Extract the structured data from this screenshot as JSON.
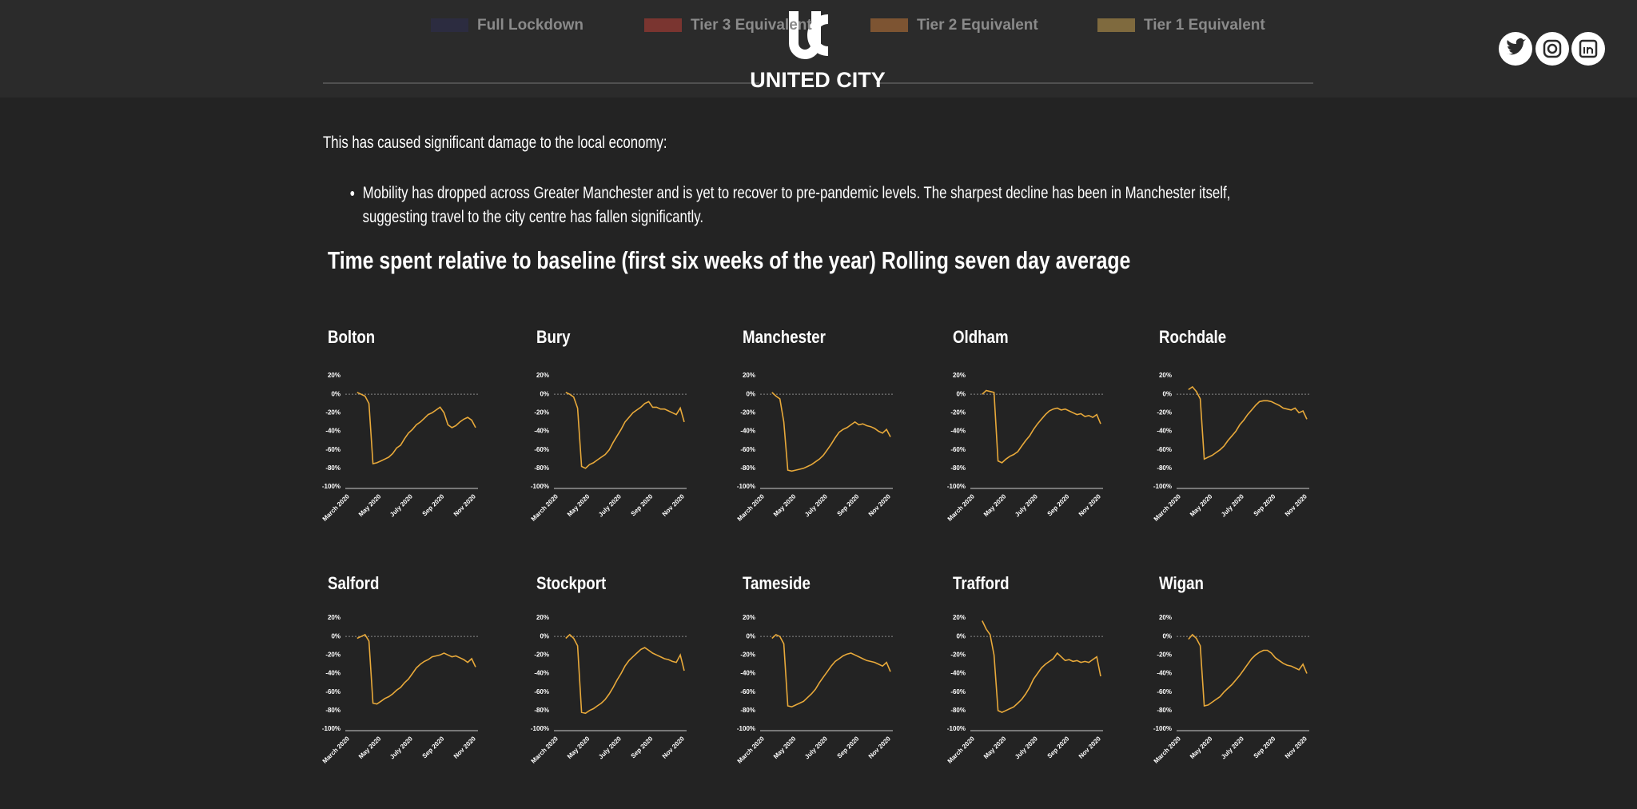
{
  "header": {
    "legend": [
      {
        "label": "Full Lockdown",
        "color": "#2c2c40"
      },
      {
        "label": "Tier 3 Equivalent",
        "color": "#7a3530"
      },
      {
        "label": "Tier 2 Equivalent",
        "color": "#7d5432"
      },
      {
        "label": "Tier 1 Equivalent",
        "color": "#7f6a3e"
      }
    ],
    "logo_text": "UNITED CITY"
  },
  "body": {
    "intro": "This has caused significant damage to the local economy:",
    "bullets": [
      "Mobility has dropped across Greater Manchester and is yet to recover to pre-pandemic levels. The sharpest decline has been in Manchester itself, suggesting travel to the city centre has fallen significantly."
    ],
    "section_title": "Time spent relative to baseline (first six weeks of the year) Rolling seven day average"
  },
  "chart_data": [
    {
      "type": "line",
      "title": "Bolton",
      "categories": [
        "March 2020",
        null,
        null,
        null,
        null,
        null,
        null,
        null,
        "May 2020",
        null,
        null,
        null,
        null,
        null,
        null,
        null,
        "July 2020",
        null,
        null,
        null,
        null,
        null,
        null,
        null,
        "Sep 2020",
        null,
        null,
        null,
        null,
        null,
        null,
        null,
        "Nov 2020",
        null
      ],
      "series": [
        {
          "color": "#e8a93a",
          "values": [
            null,
            null,
            null,
            2,
            0,
            -2,
            -10,
            -75,
            -74,
            -72,
            -70,
            -68,
            -64,
            -58,
            -55,
            -48,
            -42,
            -38,
            -33,
            -30,
            -26,
            -22,
            -20,
            -17,
            -14,
            -20,
            -33,
            -36,
            -34,
            -30,
            -27,
            -25,
            -28,
            -36
          ]
        }
      ],
      "ylim": [
        -100,
        20
      ],
      "yticks": [
        {
          "value": 20,
          "label": "20%"
        },
        {
          "value": 0,
          "label": "0%"
        },
        {
          "value": -20,
          "label": "-20%"
        },
        {
          "value": -40,
          "label": "-40%"
        },
        {
          "value": -60,
          "label": "-60%"
        },
        {
          "value": -80,
          "label": "-80%"
        },
        {
          "value": -100,
          "label": "-100%"
        }
      ]
    },
    {
      "type": "line",
      "title": "Bury",
      "categories": [
        "March 2020",
        null,
        null,
        null,
        null,
        null,
        null,
        null,
        "May 2020",
        null,
        null,
        null,
        null,
        null,
        null,
        null,
        "July 2020",
        null,
        null,
        null,
        null,
        null,
        null,
        null,
        "Sep 2020",
        null,
        null,
        null,
        null,
        null,
        null,
        null,
        "Nov 2020",
        null
      ],
      "series": [
        {
          "color": "#e8a93a",
          "values": [
            null,
            null,
            null,
            2,
            0,
            -3,
            -15,
            -78,
            -80,
            -76,
            -74,
            -71,
            -68,
            -65,
            -60,
            -52,
            -45,
            -38,
            -30,
            -25,
            -20,
            -17,
            -14,
            -10,
            -8,
            -14,
            -14,
            -16,
            -16,
            -18,
            -20,
            -22,
            -15,
            -30
          ]
        }
      ],
      "ylim": [
        -100,
        20
      ],
      "yticks": [
        {
          "value": 20,
          "label": "20%"
        },
        {
          "value": 0,
          "label": "0%"
        },
        {
          "value": -20,
          "label": "-20%"
        },
        {
          "value": -40,
          "label": "-40%"
        },
        {
          "value": -60,
          "label": "-60%"
        },
        {
          "value": -80,
          "label": "-80%"
        },
        {
          "value": -100,
          "label": "-100%"
        }
      ]
    },
    {
      "type": "line",
      "title": "Manchester",
      "categories": [
        "March 2020",
        null,
        null,
        null,
        null,
        null,
        null,
        null,
        "May 2020",
        null,
        null,
        null,
        null,
        null,
        null,
        null,
        "July 2020",
        null,
        null,
        null,
        null,
        null,
        null,
        null,
        "Sep 2020",
        null,
        null,
        null,
        null,
        null,
        null,
        null,
        "Nov 2020",
        null
      ],
      "series": [
        {
          "color": "#e8a93a",
          "values": [
            null,
            null,
            null,
            2,
            -2,
            -5,
            -30,
            -82,
            -83,
            -82,
            -81,
            -80,
            -78,
            -76,
            -73,
            -70,
            -66,
            -60,
            -54,
            -47,
            -41,
            -38,
            -36,
            -33,
            -30,
            -33,
            -32,
            -34,
            -35,
            -37,
            -40,
            -42,
            -38,
            -46
          ]
        }
      ],
      "ylim": [
        -100,
        20
      ],
      "yticks": [
        {
          "value": 20,
          "label": "20%"
        },
        {
          "value": 0,
          "label": "0%"
        },
        {
          "value": -20,
          "label": "-20%"
        },
        {
          "value": -40,
          "label": "-40%"
        },
        {
          "value": -60,
          "label": "-60%"
        },
        {
          "value": -80,
          "label": "-80%"
        },
        {
          "value": -100,
          "label": "-100%"
        }
      ]
    },
    {
      "type": "line",
      "title": "Oldham",
      "categories": [
        "March 2020",
        null,
        null,
        null,
        null,
        null,
        null,
        null,
        "May 2020",
        null,
        null,
        null,
        null,
        null,
        null,
        null,
        "July 2020",
        null,
        null,
        null,
        null,
        null,
        null,
        null,
        "Sep 2020",
        null,
        null,
        null,
        null,
        null,
        null,
        null,
        "Nov 2020",
        null
      ],
      "series": [
        {
          "color": "#e8a93a",
          "values": [
            null,
            null,
            null,
            0,
            4,
            3,
            2,
            -72,
            -74,
            -70,
            -67,
            -65,
            -62,
            -56,
            -50,
            -45,
            -38,
            -32,
            -27,
            -22,
            -18,
            -16,
            -15,
            -17,
            -16,
            -18,
            -20,
            -22,
            -21,
            -24,
            -23,
            -25,
            -22,
            -32
          ]
        }
      ],
      "ylim": [
        -100,
        20
      ],
      "yticks": [
        {
          "value": 20,
          "label": "20%"
        },
        {
          "value": 0,
          "label": "0%"
        },
        {
          "value": -20,
          "label": "-20%"
        },
        {
          "value": -40,
          "label": "-40%"
        },
        {
          "value": -60,
          "label": "-60%"
        },
        {
          "value": -80,
          "label": "-80%"
        },
        {
          "value": -100,
          "label": "-100%"
        }
      ]
    },
    {
      "type": "line",
      "title": "Rochdale",
      "categories": [
        "March 2020",
        null,
        null,
        null,
        null,
        null,
        null,
        null,
        "May 2020",
        null,
        null,
        null,
        null,
        null,
        null,
        null,
        "July 2020",
        null,
        null,
        null,
        null,
        null,
        null,
        null,
        "Sep 2020",
        null,
        null,
        null,
        null,
        null,
        null,
        null,
        "Nov 2020",
        null
      ],
      "series": [
        {
          "color": "#e8a93a",
          "values": [
            null,
            null,
            null,
            5,
            8,
            3,
            -5,
            -70,
            -68,
            -66,
            -63,
            -60,
            -56,
            -50,
            -45,
            -40,
            -33,
            -28,
            -22,
            -17,
            -12,
            -8,
            -7,
            -7,
            -8,
            -10,
            -12,
            -15,
            -16,
            -17,
            -15,
            -20,
            -18,
            -27
          ]
        }
      ],
      "ylim": [
        -100,
        20
      ],
      "yticks": [
        {
          "value": 20,
          "label": "20%"
        },
        {
          "value": 0,
          "label": "0%"
        },
        {
          "value": -20,
          "label": "-20%"
        },
        {
          "value": -40,
          "label": "-40%"
        },
        {
          "value": -60,
          "label": "-60%"
        },
        {
          "value": -80,
          "label": "-80%"
        },
        {
          "value": -100,
          "label": "-100%"
        }
      ]
    },
    {
      "type": "line",
      "title": "Salford",
      "categories": [
        "March 2020",
        null,
        null,
        null,
        null,
        null,
        null,
        null,
        "May 2020",
        null,
        null,
        null,
        null,
        null,
        null,
        null,
        "July 2020",
        null,
        null,
        null,
        null,
        null,
        null,
        null,
        "Sep 2020",
        null,
        null,
        null,
        null,
        null,
        null,
        null,
        "Nov 2020",
        null
      ],
      "series": [
        {
          "color": "#e8a93a",
          "values": [
            null,
            null,
            null,
            -2,
            0,
            2,
            -5,
            -72,
            -73,
            -70,
            -67,
            -65,
            -62,
            -58,
            -55,
            -50,
            -46,
            -40,
            -34,
            -30,
            -27,
            -25,
            -22,
            -21,
            -20,
            -18,
            -20,
            -22,
            -21,
            -23,
            -25,
            -28,
            -24,
            -33
          ]
        }
      ],
      "ylim": [
        -100,
        20
      ],
      "yticks": [
        {
          "value": 20,
          "label": "20%"
        },
        {
          "value": 0,
          "label": "0%"
        },
        {
          "value": -20,
          "label": "-20%"
        },
        {
          "value": -40,
          "label": "-40%"
        },
        {
          "value": -60,
          "label": "-60%"
        },
        {
          "value": -80,
          "label": "-80%"
        },
        {
          "value": -100,
          "label": "-100%"
        }
      ]
    },
    {
      "type": "line",
      "title": "Stockport",
      "categories": [
        "March 2020",
        null,
        null,
        null,
        null,
        null,
        null,
        null,
        "May 2020",
        null,
        null,
        null,
        null,
        null,
        null,
        null,
        "July 2020",
        null,
        null,
        null,
        null,
        null,
        null,
        null,
        "Sep 2020",
        null,
        null,
        null,
        null,
        null,
        null,
        null,
        "Nov 2020",
        null
      ],
      "series": [
        {
          "color": "#e8a93a",
          "values": [
            null,
            null,
            null,
            -2,
            2,
            -2,
            -10,
            -82,
            -83,
            -80,
            -78,
            -75,
            -72,
            -68,
            -62,
            -55,
            -47,
            -40,
            -32,
            -26,
            -22,
            -18,
            -14,
            -12,
            -15,
            -18,
            -20,
            -22,
            -24,
            -25,
            -27,
            -28,
            -20,
            -37
          ]
        }
      ],
      "ylim": [
        -100,
        20
      ],
      "yticks": [
        {
          "value": 20,
          "label": "20%"
        },
        {
          "value": 0,
          "label": "0%"
        },
        {
          "value": -20,
          "label": "-20%"
        },
        {
          "value": -40,
          "label": "-40%"
        },
        {
          "value": -60,
          "label": "-60%"
        },
        {
          "value": -80,
          "label": "-80%"
        },
        {
          "value": -100,
          "label": "-100%"
        }
      ]
    },
    {
      "type": "line",
      "title": "Tameside",
      "categories": [
        "March 2020",
        null,
        null,
        null,
        null,
        null,
        null,
        null,
        "May 2020",
        null,
        null,
        null,
        null,
        null,
        null,
        null,
        "July 2020",
        null,
        null,
        null,
        null,
        null,
        null,
        null,
        "Sep 2020",
        null,
        null,
        null,
        null,
        null,
        null,
        null,
        "Nov 2020",
        null
      ],
      "series": [
        {
          "color": "#e8a93a",
          "values": [
            null,
            null,
            null,
            -2,
            2,
            0,
            -8,
            -75,
            -76,
            -74,
            -72,
            -70,
            -66,
            -62,
            -57,
            -50,
            -44,
            -38,
            -32,
            -27,
            -24,
            -21,
            -19,
            -18,
            -20,
            -22,
            -24,
            -26,
            -27,
            -28,
            -30,
            -32,
            -28,
            -38
          ]
        }
      ],
      "ylim": [
        -100,
        20
      ],
      "yticks": [
        {
          "value": 20,
          "label": "20%"
        },
        {
          "value": 0,
          "label": "0%"
        },
        {
          "value": -20,
          "label": "-20%"
        },
        {
          "value": -40,
          "label": "-40%"
        },
        {
          "value": -60,
          "label": "-60%"
        },
        {
          "value": -80,
          "label": "-80%"
        },
        {
          "value": -100,
          "label": "-100%"
        }
      ]
    },
    {
      "type": "line",
      "title": "Trafford",
      "categories": [
        "March 2020",
        null,
        null,
        null,
        null,
        null,
        null,
        null,
        "May 2020",
        null,
        null,
        null,
        null,
        null,
        null,
        null,
        "July 2020",
        null,
        null,
        null,
        null,
        null,
        null,
        null,
        "Sep 2020",
        null,
        null,
        null,
        null,
        null,
        null,
        null,
        "Nov 2020",
        null
      ],
      "series": [
        {
          "color": "#e8a93a",
          "values": [
            null,
            null,
            null,
            17,
            8,
            2,
            -20,
            -80,
            -82,
            -80,
            -78,
            -76,
            -72,
            -68,
            -62,
            -55,
            -46,
            -40,
            -34,
            -30,
            -27,
            -24,
            -18,
            -22,
            -26,
            -25,
            -27,
            -26,
            -28,
            -27,
            -28,
            -25,
            -22,
            -43
          ]
        }
      ],
      "ylim": [
        -100,
        20
      ],
      "yticks": [
        {
          "value": 20,
          "label": "20%"
        },
        {
          "value": 0,
          "label": "0%"
        },
        {
          "value": -20,
          "label": "-20%"
        },
        {
          "value": -40,
          "label": "-40%"
        },
        {
          "value": -60,
          "label": "-60%"
        },
        {
          "value": -80,
          "label": "-80%"
        },
        {
          "value": -100,
          "label": "-100%"
        }
      ]
    },
    {
      "type": "line",
      "title": "Wigan",
      "categories": [
        "March 2020",
        null,
        null,
        null,
        null,
        null,
        null,
        null,
        "May 2020",
        null,
        null,
        null,
        null,
        null,
        null,
        null,
        "July 2020",
        null,
        null,
        null,
        null,
        null,
        null,
        null,
        "Sep 2020",
        null,
        null,
        null,
        null,
        null,
        null,
        null,
        "Nov 2020",
        null
      ],
      "series": [
        {
          "color": "#e8a93a",
          "values": [
            null,
            null,
            null,
            -3,
            2,
            -2,
            -10,
            -75,
            -74,
            -71,
            -68,
            -65,
            -60,
            -56,
            -52,
            -47,
            -42,
            -36,
            -30,
            -24,
            -20,
            -17,
            -15,
            -15,
            -18,
            -23,
            -26,
            -29,
            -31,
            -32,
            -34,
            -36,
            -30,
            -40
          ]
        }
      ],
      "ylim": [
        -100,
        20
      ],
      "yticks": [
        {
          "value": 20,
          "label": "20%"
        },
        {
          "value": 0,
          "label": "0%"
        },
        {
          "value": -20,
          "label": "-20%"
        },
        {
          "value": -40,
          "label": "-40%"
        },
        {
          "value": -60,
          "label": "-60%"
        },
        {
          "value": -80,
          "label": "-80%"
        },
        {
          "value": -100,
          "label": "-100%"
        }
      ]
    }
  ]
}
